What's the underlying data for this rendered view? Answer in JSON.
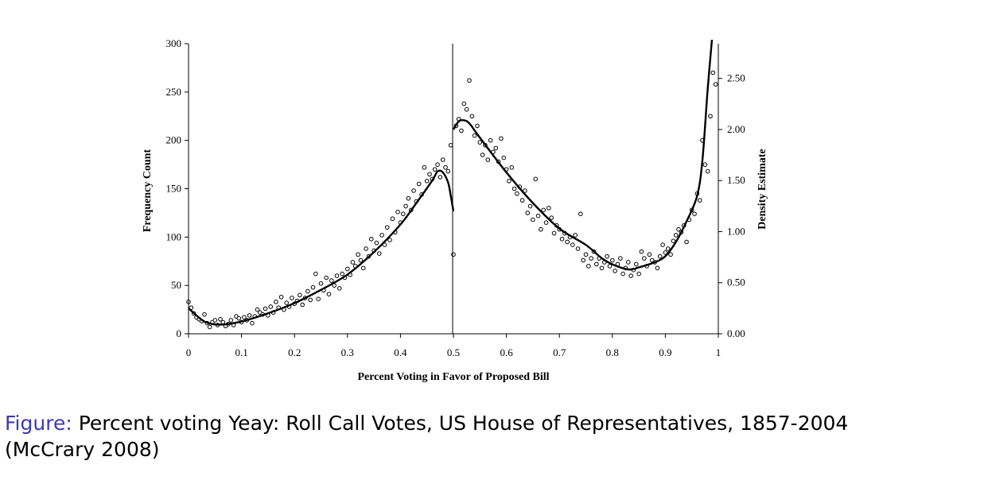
{
  "caption": {
    "label": "Figure:",
    "text": "Percent voting Yeay: Roll Call Votes, US House of Representatives, 1857-2004",
    "citation": "(McCrary 2008)"
  },
  "colors": {
    "caption_label": "#3b3bb3",
    "ink": "#000000"
  },
  "chart_data": {
    "type": "scatter",
    "title": "",
    "xlabel": "Percent Voting in Favor of Proposed Bill",
    "ylabel": "Frequency Count",
    "y2label": "Density Estimate",
    "xlim": [
      0,
      1
    ],
    "ylim": [
      0,
      300
    ],
    "y2lim": [
      0,
      2.84
    ],
    "x_ticks": [
      "0",
      "0.1",
      "0.2",
      "0.3",
      "0.4",
      "0.5",
      "0.6",
      "0.7",
      "0.8",
      "0.9",
      "1"
    ],
    "y_ticks": [
      "0",
      "50",
      "100",
      "150",
      "200",
      "250",
      "300"
    ],
    "y2_ticks": [
      "0.00",
      "0.50",
      "1.00",
      "1.50",
      "2.00",
      "2.50"
    ],
    "cutoff_x": 0.5,
    "grid": false,
    "series": [
      {
        "kind": "points",
        "points": [
          [
            0.0,
            33
          ],
          [
            0.005,
            27
          ],
          [
            0.01,
            21
          ],
          [
            0.015,
            17
          ],
          [
            0.02,
            15
          ],
          [
            0.025,
            13
          ],
          [
            0.03,
            20
          ],
          [
            0.035,
            11
          ],
          [
            0.04,
            7
          ],
          [
            0.045,
            12
          ],
          [
            0.05,
            14
          ],
          [
            0.055,
            9
          ],
          [
            0.06,
            15
          ],
          [
            0.065,
            12
          ],
          [
            0.07,
            8
          ],
          [
            0.075,
            10
          ],
          [
            0.08,
            14
          ],
          [
            0.085,
            9
          ],
          [
            0.09,
            18
          ],
          [
            0.095,
            16
          ],
          [
            0.1,
            12
          ],
          [
            0.105,
            17
          ],
          [
            0.11,
            14
          ],
          [
            0.115,
            19
          ],
          [
            0.12,
            11
          ],
          [
            0.125,
            18
          ],
          [
            0.13,
            25
          ],
          [
            0.135,
            22
          ],
          [
            0.14,
            20
          ],
          [
            0.145,
            26
          ],
          [
            0.15,
            19
          ],
          [
            0.155,
            28
          ],
          [
            0.16,
            22
          ],
          [
            0.165,
            33
          ],
          [
            0.17,
            27
          ],
          [
            0.175,
            38
          ],
          [
            0.18,
            25
          ],
          [
            0.185,
            32
          ],
          [
            0.19,
            28
          ],
          [
            0.195,
            37
          ],
          [
            0.2,
            31
          ],
          [
            0.205,
            34
          ],
          [
            0.21,
            40
          ],
          [
            0.215,
            30
          ],
          [
            0.22,
            37
          ],
          [
            0.225,
            44
          ],
          [
            0.23,
            35
          ],
          [
            0.235,
            48
          ],
          [
            0.24,
            62
          ],
          [
            0.245,
            36
          ],
          [
            0.25,
            52
          ],
          [
            0.255,
            45
          ],
          [
            0.26,
            58
          ],
          [
            0.265,
            41
          ],
          [
            0.27,
            55
          ],
          [
            0.275,
            50
          ],
          [
            0.28,
            60
          ],
          [
            0.285,
            47
          ],
          [
            0.29,
            62
          ],
          [
            0.295,
            58
          ],
          [
            0.3,
            67
          ],
          [
            0.305,
            61
          ],
          [
            0.31,
            74
          ],
          [
            0.315,
            70
          ],
          [
            0.32,
            82
          ],
          [
            0.325,
            76
          ],
          [
            0.33,
            68
          ],
          [
            0.335,
            88
          ],
          [
            0.34,
            80
          ],
          [
            0.345,
            98
          ],
          [
            0.35,
            86
          ],
          [
            0.355,
            94
          ],
          [
            0.36,
            83
          ],
          [
            0.365,
            102
          ],
          [
            0.37,
            92
          ],
          [
            0.375,
            110
          ],
          [
            0.38,
            97
          ],
          [
            0.385,
            119
          ],
          [
            0.39,
            105
          ],
          [
            0.395,
            126
          ],
          [
            0.4,
            115
          ],
          [
            0.405,
            124
          ],
          [
            0.41,
            132
          ],
          [
            0.415,
            140
          ],
          [
            0.42,
            128
          ],
          [
            0.425,
            148
          ],
          [
            0.43,
            137
          ],
          [
            0.435,
            155
          ],
          [
            0.44,
            144
          ],
          [
            0.445,
            172
          ],
          [
            0.45,
            158
          ],
          [
            0.455,
            165
          ],
          [
            0.46,
            160
          ],
          [
            0.465,
            170
          ],
          [
            0.47,
            175
          ],
          [
            0.475,
            162
          ],
          [
            0.48,
            180
          ],
          [
            0.485,
            172
          ],
          [
            0.49,
            168
          ],
          [
            0.495,
            195
          ],
          [
            0.5,
            82
          ],
          [
            0.505,
            215
          ],
          [
            0.51,
            222
          ],
          [
            0.515,
            210
          ],
          [
            0.52,
            238
          ],
          [
            0.525,
            232
          ],
          [
            0.53,
            262
          ],
          [
            0.535,
            225
          ],
          [
            0.54,
            205
          ],
          [
            0.545,
            215
          ],
          [
            0.55,
            198
          ],
          [
            0.555,
            185
          ],
          [
            0.56,
            195
          ],
          [
            0.565,
            180
          ],
          [
            0.57,
            200
          ],
          [
            0.575,
            188
          ],
          [
            0.58,
            192
          ],
          [
            0.585,
            178
          ],
          [
            0.59,
            202
          ],
          [
            0.595,
            182
          ],
          [
            0.6,
            170
          ],
          [
            0.605,
            158
          ],
          [
            0.61,
            172
          ],
          [
            0.615,
            150
          ],
          [
            0.62,
            145
          ],
          [
            0.625,
            152
          ],
          [
            0.63,
            138
          ],
          [
            0.635,
            148
          ],
          [
            0.64,
            125
          ],
          [
            0.645,
            132
          ],
          [
            0.65,
            118
          ],
          [
            0.655,
            160
          ],
          [
            0.66,
            122
          ],
          [
            0.665,
            108
          ],
          [
            0.67,
            128
          ],
          [
            0.675,
            115
          ],
          [
            0.68,
            130
          ],
          [
            0.685,
            120
          ],
          [
            0.69,
            104
          ],
          [
            0.695,
            112
          ],
          [
            0.7,
            108
          ],
          [
            0.705,
            98
          ],
          [
            0.71,
            104
          ],
          [
            0.715,
            95
          ],
          [
            0.72,
            100
          ],
          [
            0.725,
            92
          ],
          [
            0.73,
            102
          ],
          [
            0.735,
            88
          ],
          [
            0.74,
            124
          ],
          [
            0.745,
            76
          ],
          [
            0.75,
            82
          ],
          [
            0.755,
            70
          ],
          [
            0.76,
            78
          ],
          [
            0.765,
            85
          ],
          [
            0.77,
            72
          ],
          [
            0.775,
            78
          ],
          [
            0.78,
            68
          ],
          [
            0.785,
            74
          ],
          [
            0.79,
            80
          ],
          [
            0.795,
            70
          ],
          [
            0.8,
            76
          ],
          [
            0.805,
            65
          ],
          [
            0.81,
            72
          ],
          [
            0.815,
            78
          ],
          [
            0.82,
            62
          ],
          [
            0.825,
            68
          ],
          [
            0.83,
            74
          ],
          [
            0.835,
            60
          ],
          [
            0.84,
            66
          ],
          [
            0.845,
            72
          ],
          [
            0.85,
            62
          ],
          [
            0.855,
            85
          ],
          [
            0.86,
            78
          ],
          [
            0.865,
            70
          ],
          [
            0.87,
            82
          ],
          [
            0.875,
            76
          ],
          [
            0.88,
            74
          ],
          [
            0.885,
            68
          ],
          [
            0.89,
            80
          ],
          [
            0.895,
            92
          ],
          [
            0.9,
            84
          ],
          [
            0.905,
            88
          ],
          [
            0.91,
            82
          ],
          [
            0.915,
            96
          ],
          [
            0.92,
            102
          ],
          [
            0.925,
            108
          ],
          [
            0.93,
            105
          ],
          [
            0.935,
            112
          ],
          [
            0.94,
            95
          ],
          [
            0.945,
            118
          ],
          [
            0.95,
            128
          ],
          [
            0.955,
            124
          ],
          [
            0.96,
            145
          ],
          [
            0.965,
            138
          ],
          [
            0.97,
            200
          ],
          [
            0.975,
            175
          ],
          [
            0.98,
            168
          ],
          [
            0.985,
            225
          ],
          [
            0.99,
            270
          ],
          [
            0.995,
            258
          ]
        ]
      },
      {
        "kind": "density-fit-left",
        "x": [
          0.0,
          0.03,
          0.06,
          0.1,
          0.15,
          0.2,
          0.25,
          0.3,
          0.35,
          0.4,
          0.43,
          0.46,
          0.47,
          0.48,
          0.49,
          0.495,
          0.5
        ],
        "y": [
          0.25,
          0.12,
          0.09,
          0.12,
          0.2,
          0.3,
          0.43,
          0.58,
          0.8,
          1.07,
          1.28,
          1.5,
          1.59,
          1.58,
          1.48,
          1.35,
          1.2
        ]
      },
      {
        "kind": "density-fit-right",
        "x": [
          0.5,
          0.51,
          0.52,
          0.53,
          0.55,
          0.6,
          0.65,
          0.7,
          0.75,
          0.78,
          0.8,
          0.83,
          0.85,
          0.88,
          0.9,
          0.92,
          0.94,
          0.96,
          0.97,
          0.98,
          0.99
        ],
        "y": [
          2.0,
          2.08,
          2.09,
          2.06,
          1.92,
          1.58,
          1.28,
          1.03,
          0.87,
          0.74,
          0.68,
          0.63,
          0.65,
          0.7,
          0.76,
          0.9,
          1.1,
          1.35,
          1.7,
          2.4,
          3.0
        ]
      }
    ]
  }
}
